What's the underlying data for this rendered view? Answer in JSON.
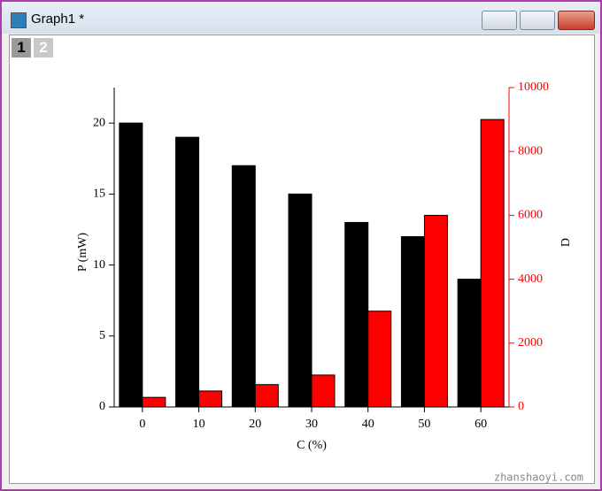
{
  "window": {
    "title": "Graph1 *",
    "tabs": [
      "1",
      "2"
    ]
  },
  "chart_data": {
    "type": "bar",
    "x_label": "C (%)",
    "y_label": "P (mW)",
    "y2_label": "D",
    "categories": [
      "0",
      "10",
      "20",
      "30",
      "40",
      "50",
      "60"
    ],
    "series": [
      {
        "color": "#000000",
        "values": [
          20,
          19,
          17,
          15,
          13,
          12,
          9
        ]
      },
      {
        "color": "#ff0000",
        "axis": "y2",
        "values": [
          300,
          500,
          700,
          1000,
          3000,
          6000,
          9000
        ]
      }
    ],
    "ylim": [
      0,
      22.5
    ],
    "yticks": [
      0,
      5,
      10,
      15,
      20
    ],
    "y2lim": [
      0,
      10000
    ],
    "y2ticks": [
      0,
      2000,
      4000,
      6000,
      8000,
      10000
    ],
    "y2color": "#ff0000"
  },
  "watermark": "zhanshaoyi.com"
}
